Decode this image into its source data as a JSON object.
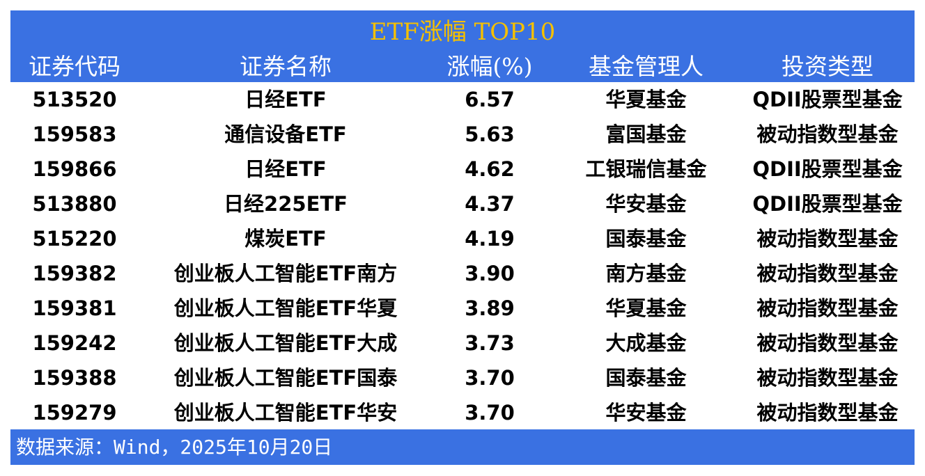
{
  "title": "ETF涨幅 TOP10",
  "headers": [
    "证券代码",
    "证券名称",
    "涨幅(%)",
    "基金管理人",
    "投资类型"
  ],
  "rows": [
    [
      "513520",
      "日经ETF",
      "6.57",
      "华夏基金",
      "QDII股票型基金"
    ],
    [
      "159583",
      "通信设备ETF",
      "5.63",
      "富国基金",
      "被动指数型基金"
    ],
    [
      "159866",
      "日经ETF",
      "4.62",
      "工银瑞信基金",
      "QDII股票型基金"
    ],
    [
      "513880",
      "日经225ETF",
      "4.37",
      "华安基金",
      "QDII股票型基金"
    ],
    [
      "515220",
      "煤炭ETF",
      "4.19",
      "国泰基金",
      "被动指数型基金"
    ],
    [
      "159382",
      "创业板人工智能ETF南方",
      "3.90",
      "南方基金",
      "被动指数型基金"
    ],
    [
      "159381",
      "创业板人工智能ETF华夏",
      "3.89",
      "华夏基金",
      "被动指数型基金"
    ],
    [
      "159242",
      "创业板人工智能ETF大成",
      "3.73",
      "大成基金",
      "被动指数型基金"
    ],
    [
      "159388",
      "创业板人工智能ETF国泰",
      "3.70",
      "国泰基金",
      "被动指数型基金"
    ],
    [
      "159279",
      "创业板人工智能ETF华安",
      "3.70",
      "华安基金",
      "被动指数型基金"
    ]
  ],
  "footer": "数据来源：Wind，2025年10月20日",
  "colors": {
    "header_bg": "#3a71e2",
    "title": "#f5c000",
    "header_text": "#ffffff"
  }
}
